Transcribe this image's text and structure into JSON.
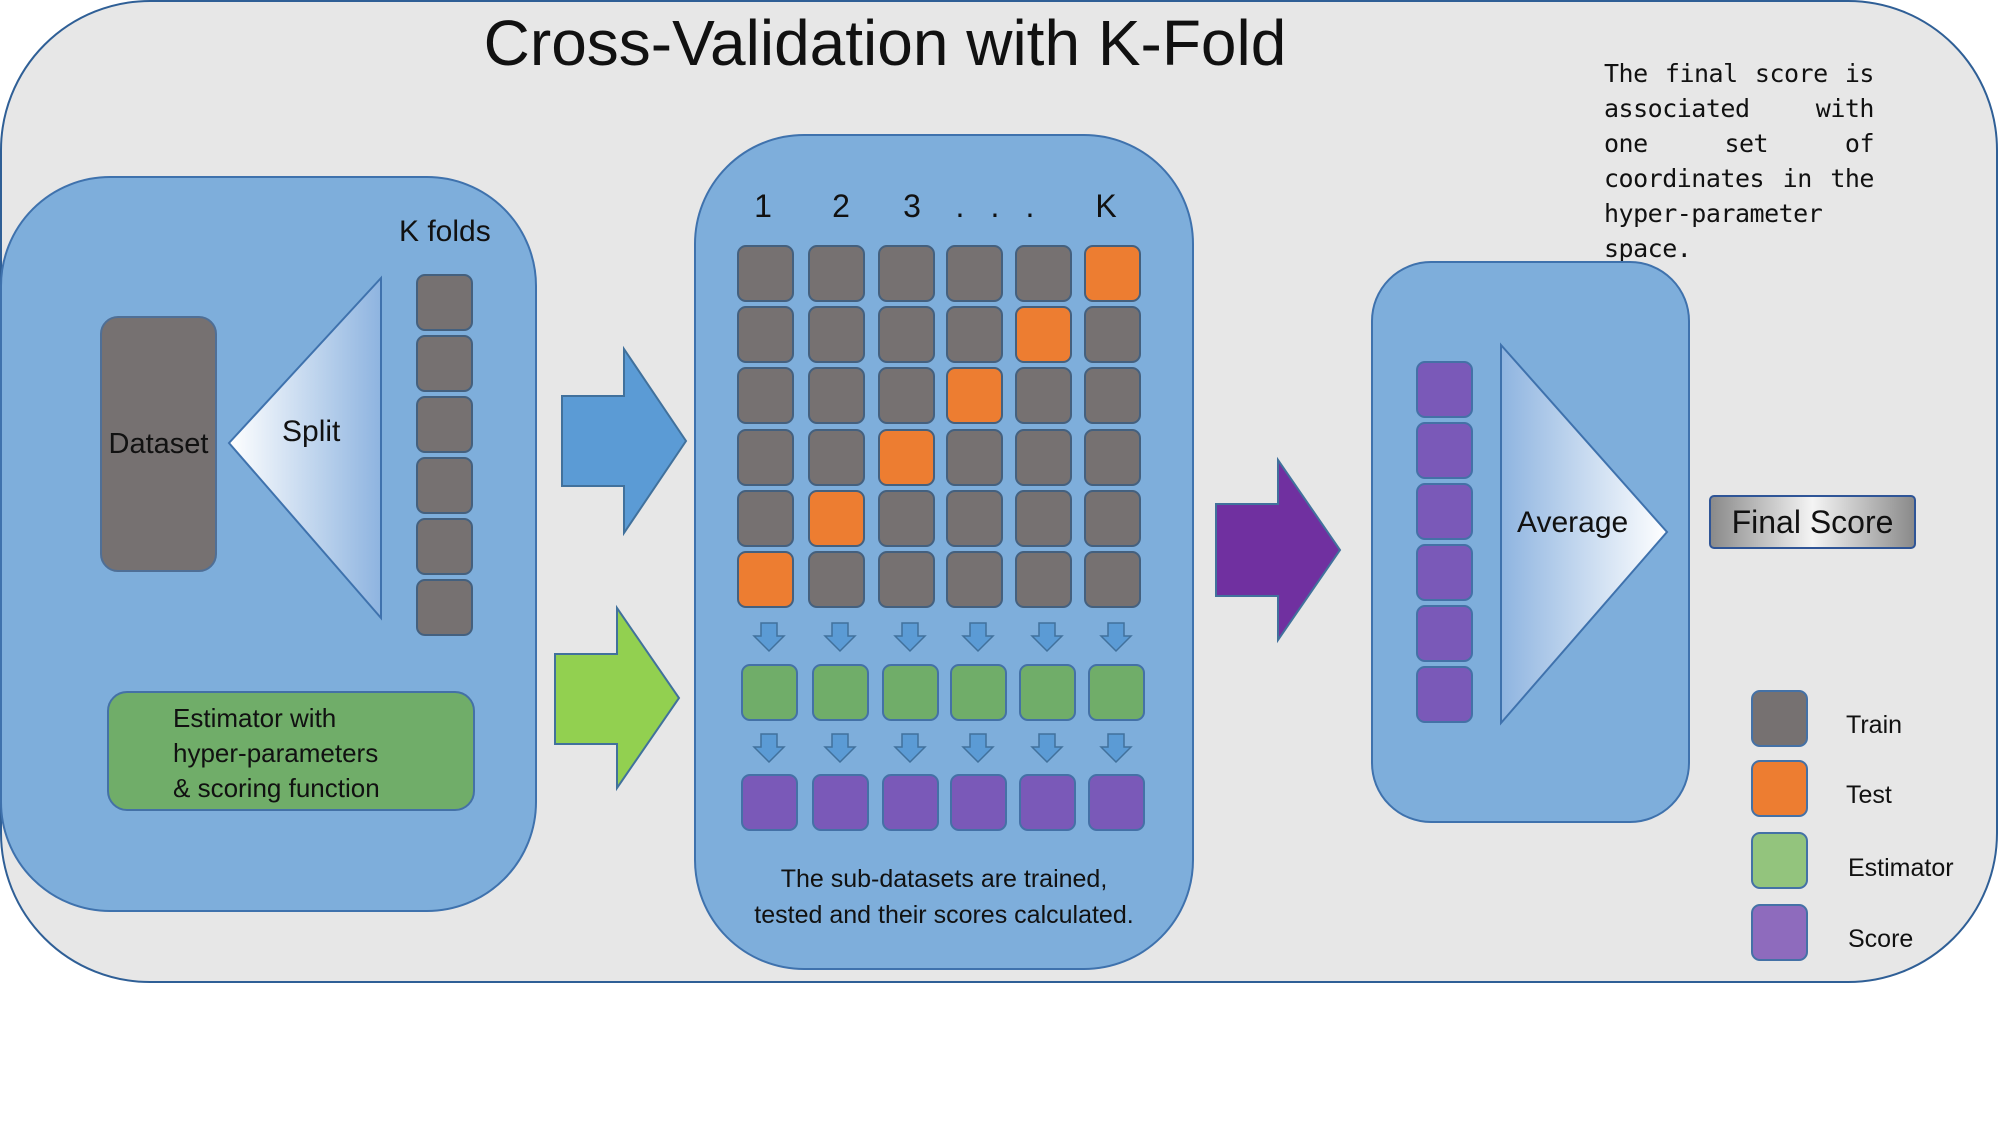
{
  "title": "Cross-Validation with K-Fold",
  "note": "The final score is associated with one set of coordinates in the hyper-parameter space.",
  "left_panel": {
    "dataset_label": "Dataset",
    "split_label": "Split",
    "kfolds_label": "K folds",
    "estimator_lines": [
      "Estimator with",
      "hyper-parameters",
      "& scoring function"
    ]
  },
  "center_panel": {
    "column_headers": [
      "1",
      "2",
      "3",
      ".",
      ".",
      ".",
      "K"
    ],
    "caption_lines": [
      "The sub-datasets are trained,",
      "tested and their scores calculated."
    ]
  },
  "right_panel": {
    "average_label": "Average",
    "final_score_label": "Final Score"
  },
  "legend": [
    {
      "label": "Train",
      "color": "#767171"
    },
    {
      "label": "Test",
      "color": "#ed7d31"
    },
    {
      "label": "Estimator",
      "color": "#93c47d"
    },
    {
      "label": "Score",
      "color": "#8e6bbd"
    }
  ],
  "colors": {
    "background": "#e7e7e7",
    "panel": "#7eaedb",
    "train": "#767171",
    "test": "#ed7d31",
    "estimator": "#70ad69",
    "score": "#7a59b8",
    "arrow_blue": "#5b9bd5",
    "arrow_green": "#92d050",
    "arrow_purple": "#7030a0"
  }
}
